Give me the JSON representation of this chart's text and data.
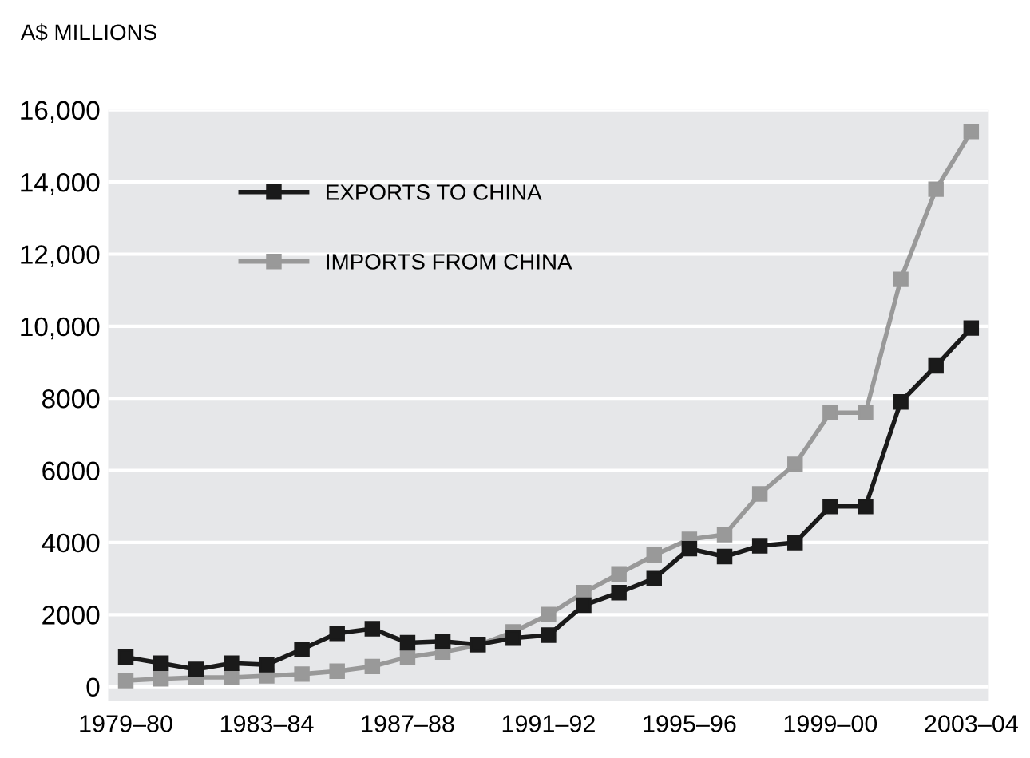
{
  "chart_data": {
    "type": "line",
    "ylabel": "A$ MILLIONS",
    "categories": [
      "1979–80",
      null,
      null,
      null,
      "1983–84",
      null,
      null,
      null,
      "1987–88",
      null,
      null,
      null,
      "1991–92",
      null,
      null,
      null,
      "1995–96",
      null,
      null,
      null,
      "1999–00",
      null,
      null,
      null,
      "2003–04"
    ],
    "series": [
      {
        "name": "EXPORTS TO CHINA",
        "color": "#1a1a1a",
        "values": [
          820,
          650,
          480,
          650,
          610,
          1040,
          1480,
          1610,
          1220,
          1260,
          1170,
          1350,
          1430,
          2260,
          2610,
          3000,
          3830,
          3610,
          3910,
          4000,
          5000,
          5000,
          7900,
          8900,
          9950
        ]
      },
      {
        "name": "IMPORTS FROM CHINA",
        "color": "#999999",
        "values": [
          170,
          220,
          260,
          260,
          300,
          350,
          430,
          560,
          820,
          960,
          1150,
          1520,
          2000,
          2610,
          3130,
          3650,
          4090,
          4220,
          5350,
          6170,
          7600,
          7600,
          11300,
          13800,
          15400
        ]
      }
    ],
    "ylim": [
      -400,
      16000
    ],
    "yticks": [
      0,
      2000,
      4000,
      6000,
      8000,
      {
        "value": 10000,
        "label": "10,000"
      },
      {
        "value": 12000,
        "label": "12,000"
      },
      {
        "value": 14000,
        "label": "14,000"
      },
      {
        "value": 16000,
        "label": "16,000"
      }
    ],
    "grid": "y",
    "legend": "top left",
    "marker": "square",
    "line_style": "solid"
  }
}
